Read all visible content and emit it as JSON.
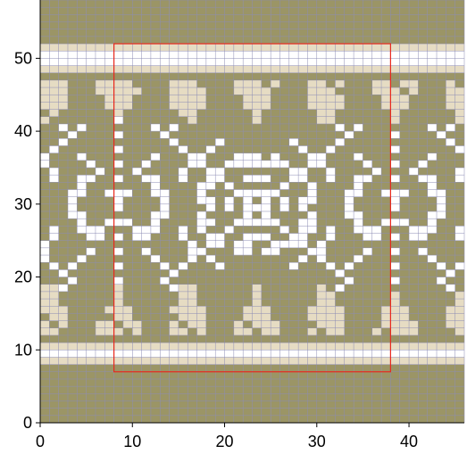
{
  "chart_data": {
    "type": "heatmap",
    "title": "",
    "xlabel": "",
    "ylabel": "",
    "xlim": [
      0,
      46
    ],
    "ylim": [
      0,
      58
    ],
    "x_ticks": [
      "0",
      "10",
      "20",
      "30",
      "40"
    ],
    "y_ticks": [
      "0",
      "10",
      "20",
      "30",
      "40",
      "50"
    ],
    "x_tick_values": [
      0,
      10,
      20,
      30,
      40
    ],
    "y_tick_values": [
      0,
      10,
      20,
      30,
      40,
      50
    ],
    "grid": true,
    "colors": {
      "background": "#9b9566",
      "pale": "#e6dcc3",
      "white": "#ffffff",
      "gridline": "#8c8cb4",
      "repeat_outline": "#e8281e"
    },
    "stripes": [
      {
        "y_range": [
          8,
          11
        ],
        "pattern": "pale-white-pale"
      },
      {
        "y_range": [
          48,
          52
        ],
        "pattern": "pale-white-pale"
      }
    ],
    "repeat_box": {
      "x": [
        8,
        38
      ],
      "y": [
        7,
        52
      ]
    },
    "motif": "Fair Isle knitting chart: central snowflake/star medallion flanked by trees, spirals and diamond lattice, with pale-coloured peaked motifs along top and bottom borders"
  }
}
